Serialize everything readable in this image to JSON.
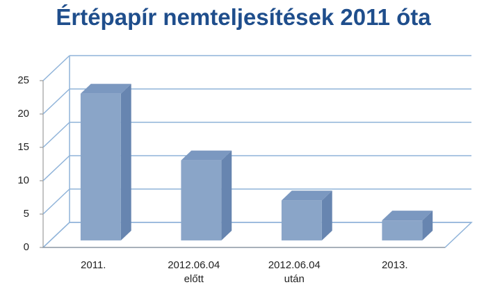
{
  "chart_data": {
    "type": "bar3d",
    "title": "Értépapír nemteljesítések 2011 óta",
    "categories": [
      "2011.",
      "2012.06.04 előtt",
      "2012.06.04 után",
      "2013."
    ],
    "values": [
      22,
      12,
      6,
      3
    ],
    "color": "#8AA5C8",
    "ylim": [
      0,
      25
    ],
    "yticks": [
      0,
      5,
      10,
      15,
      20,
      25
    ],
    "grid": true
  }
}
